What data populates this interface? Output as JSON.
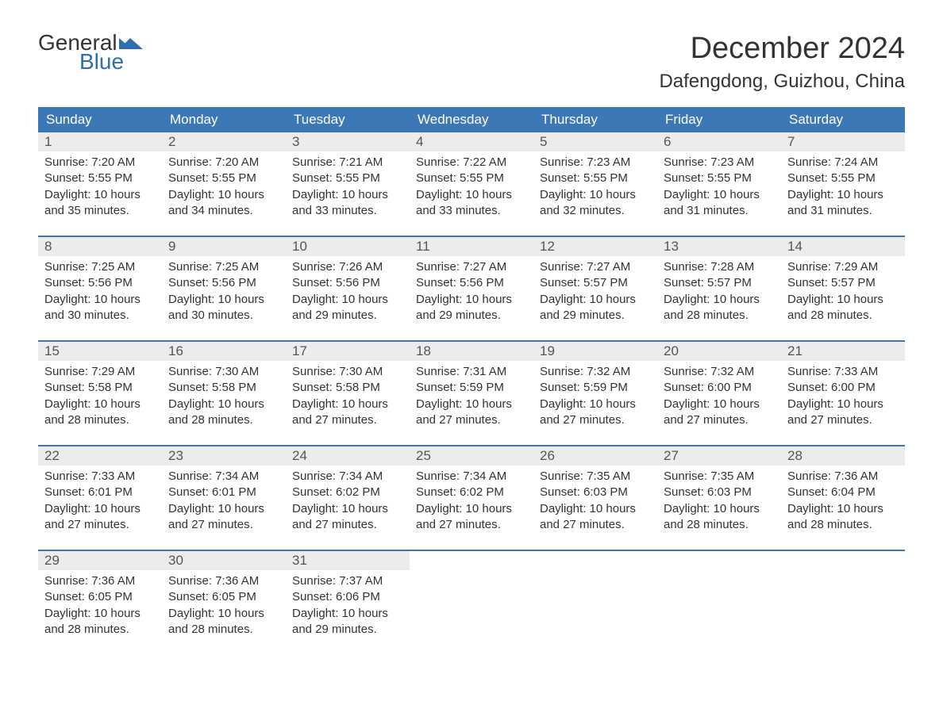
{
  "logo": {
    "general": "General",
    "blue": "Blue",
    "flag_color": "#2f6fae"
  },
  "header": {
    "month_title": "December 2024",
    "location": "Dafengdong, Guizhou, China"
  },
  "colors": {
    "header_bg": "#3b78b5",
    "header_text": "#ffffff",
    "daynum_bg": "#ececec",
    "daynum_text": "#555555",
    "body_text": "#333333",
    "accent": "#2f6fae",
    "page_bg": "#ffffff",
    "week_border": "#3b78b5"
  },
  "typography": {
    "month_title_size": 38,
    "location_size": 24,
    "day_header_size": 17,
    "daynum_size": 17,
    "body_size": 15
  },
  "calendar": {
    "day_names": [
      "Sunday",
      "Monday",
      "Tuesday",
      "Wednesday",
      "Thursday",
      "Friday",
      "Saturday"
    ],
    "weeks": [
      [
        {
          "num": "1",
          "sunrise": "Sunrise: 7:20 AM",
          "sunset": "Sunset: 5:55 PM",
          "daylight1": "Daylight: 10 hours",
          "daylight2": "and 35 minutes."
        },
        {
          "num": "2",
          "sunrise": "Sunrise: 7:20 AM",
          "sunset": "Sunset: 5:55 PM",
          "daylight1": "Daylight: 10 hours",
          "daylight2": "and 34 minutes."
        },
        {
          "num": "3",
          "sunrise": "Sunrise: 7:21 AM",
          "sunset": "Sunset: 5:55 PM",
          "daylight1": "Daylight: 10 hours",
          "daylight2": "and 33 minutes."
        },
        {
          "num": "4",
          "sunrise": "Sunrise: 7:22 AM",
          "sunset": "Sunset: 5:55 PM",
          "daylight1": "Daylight: 10 hours",
          "daylight2": "and 33 minutes."
        },
        {
          "num": "5",
          "sunrise": "Sunrise: 7:23 AM",
          "sunset": "Sunset: 5:55 PM",
          "daylight1": "Daylight: 10 hours",
          "daylight2": "and 32 minutes."
        },
        {
          "num": "6",
          "sunrise": "Sunrise: 7:23 AM",
          "sunset": "Sunset: 5:55 PM",
          "daylight1": "Daylight: 10 hours",
          "daylight2": "and 31 minutes."
        },
        {
          "num": "7",
          "sunrise": "Sunrise: 7:24 AM",
          "sunset": "Sunset: 5:55 PM",
          "daylight1": "Daylight: 10 hours",
          "daylight2": "and 31 minutes."
        }
      ],
      [
        {
          "num": "8",
          "sunrise": "Sunrise: 7:25 AM",
          "sunset": "Sunset: 5:56 PM",
          "daylight1": "Daylight: 10 hours",
          "daylight2": "and 30 minutes."
        },
        {
          "num": "9",
          "sunrise": "Sunrise: 7:25 AM",
          "sunset": "Sunset: 5:56 PM",
          "daylight1": "Daylight: 10 hours",
          "daylight2": "and 30 minutes."
        },
        {
          "num": "10",
          "sunrise": "Sunrise: 7:26 AM",
          "sunset": "Sunset: 5:56 PM",
          "daylight1": "Daylight: 10 hours",
          "daylight2": "and 29 minutes."
        },
        {
          "num": "11",
          "sunrise": "Sunrise: 7:27 AM",
          "sunset": "Sunset: 5:56 PM",
          "daylight1": "Daylight: 10 hours",
          "daylight2": "and 29 minutes."
        },
        {
          "num": "12",
          "sunrise": "Sunrise: 7:27 AM",
          "sunset": "Sunset: 5:57 PM",
          "daylight1": "Daylight: 10 hours",
          "daylight2": "and 29 minutes."
        },
        {
          "num": "13",
          "sunrise": "Sunrise: 7:28 AM",
          "sunset": "Sunset: 5:57 PM",
          "daylight1": "Daylight: 10 hours",
          "daylight2": "and 28 minutes."
        },
        {
          "num": "14",
          "sunrise": "Sunrise: 7:29 AM",
          "sunset": "Sunset: 5:57 PM",
          "daylight1": "Daylight: 10 hours",
          "daylight2": "and 28 minutes."
        }
      ],
      [
        {
          "num": "15",
          "sunrise": "Sunrise: 7:29 AM",
          "sunset": "Sunset: 5:58 PM",
          "daylight1": "Daylight: 10 hours",
          "daylight2": "and 28 minutes."
        },
        {
          "num": "16",
          "sunrise": "Sunrise: 7:30 AM",
          "sunset": "Sunset: 5:58 PM",
          "daylight1": "Daylight: 10 hours",
          "daylight2": "and 28 minutes."
        },
        {
          "num": "17",
          "sunrise": "Sunrise: 7:30 AM",
          "sunset": "Sunset: 5:58 PM",
          "daylight1": "Daylight: 10 hours",
          "daylight2": "and 27 minutes."
        },
        {
          "num": "18",
          "sunrise": "Sunrise: 7:31 AM",
          "sunset": "Sunset: 5:59 PM",
          "daylight1": "Daylight: 10 hours",
          "daylight2": "and 27 minutes."
        },
        {
          "num": "19",
          "sunrise": "Sunrise: 7:32 AM",
          "sunset": "Sunset: 5:59 PM",
          "daylight1": "Daylight: 10 hours",
          "daylight2": "and 27 minutes."
        },
        {
          "num": "20",
          "sunrise": "Sunrise: 7:32 AM",
          "sunset": "Sunset: 6:00 PM",
          "daylight1": "Daylight: 10 hours",
          "daylight2": "and 27 minutes."
        },
        {
          "num": "21",
          "sunrise": "Sunrise: 7:33 AM",
          "sunset": "Sunset: 6:00 PM",
          "daylight1": "Daylight: 10 hours",
          "daylight2": "and 27 minutes."
        }
      ],
      [
        {
          "num": "22",
          "sunrise": "Sunrise: 7:33 AM",
          "sunset": "Sunset: 6:01 PM",
          "daylight1": "Daylight: 10 hours",
          "daylight2": "and 27 minutes."
        },
        {
          "num": "23",
          "sunrise": "Sunrise: 7:34 AM",
          "sunset": "Sunset: 6:01 PM",
          "daylight1": "Daylight: 10 hours",
          "daylight2": "and 27 minutes."
        },
        {
          "num": "24",
          "sunrise": "Sunrise: 7:34 AM",
          "sunset": "Sunset: 6:02 PM",
          "daylight1": "Daylight: 10 hours",
          "daylight2": "and 27 minutes."
        },
        {
          "num": "25",
          "sunrise": "Sunrise: 7:34 AM",
          "sunset": "Sunset: 6:02 PM",
          "daylight1": "Daylight: 10 hours",
          "daylight2": "and 27 minutes."
        },
        {
          "num": "26",
          "sunrise": "Sunrise: 7:35 AM",
          "sunset": "Sunset: 6:03 PM",
          "daylight1": "Daylight: 10 hours",
          "daylight2": "and 27 minutes."
        },
        {
          "num": "27",
          "sunrise": "Sunrise: 7:35 AM",
          "sunset": "Sunset: 6:03 PM",
          "daylight1": "Daylight: 10 hours",
          "daylight2": "and 28 minutes."
        },
        {
          "num": "28",
          "sunrise": "Sunrise: 7:36 AM",
          "sunset": "Sunset: 6:04 PM",
          "daylight1": "Daylight: 10 hours",
          "daylight2": "and 28 minutes."
        }
      ],
      [
        {
          "num": "29",
          "sunrise": "Sunrise: 7:36 AM",
          "sunset": "Sunset: 6:05 PM",
          "daylight1": "Daylight: 10 hours",
          "daylight2": "and 28 minutes."
        },
        {
          "num": "30",
          "sunrise": "Sunrise: 7:36 AM",
          "sunset": "Sunset: 6:05 PM",
          "daylight1": "Daylight: 10 hours",
          "daylight2": "and 28 minutes."
        },
        {
          "num": "31",
          "sunrise": "Sunrise: 7:37 AM",
          "sunset": "Sunset: 6:06 PM",
          "daylight1": "Daylight: 10 hours",
          "daylight2": "and 29 minutes."
        },
        null,
        null,
        null,
        null
      ]
    ]
  }
}
